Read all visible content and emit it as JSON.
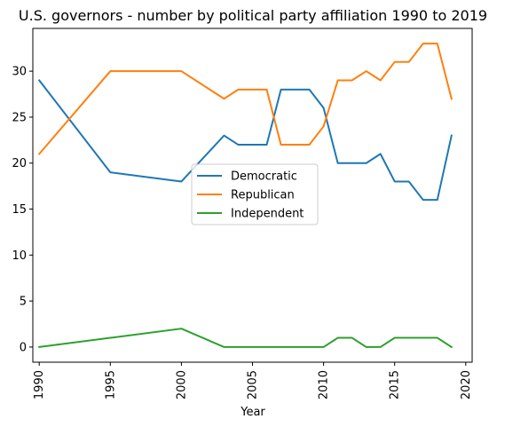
{
  "chart_data": {
    "type": "line",
    "title": "U.S. governors - number by political party affiliation 1990 to 2019",
    "xlabel": "Year",
    "ylabel": "",
    "xlim": [
      1989.55,
      2020.45
    ],
    "ylim": [
      -1.65,
      34.65
    ],
    "x_ticks": [
      "1990",
      "1995",
      "2000",
      "2005",
      "2010",
      "2015",
      "2020"
    ],
    "y_ticks": [
      "0",
      "5",
      "10",
      "15",
      "20",
      "25",
      "30"
    ],
    "legend_position": "center",
    "series": [
      {
        "name": "Democratic",
        "color": "#1f77b4",
        "points": [
          [
            1990,
            29
          ],
          [
            1995,
            19
          ],
          [
            2000,
            18
          ],
          [
            2003,
            23
          ],
          [
            2004,
            22
          ],
          [
            2005,
            22
          ],
          [
            2006,
            22
          ],
          [
            2007,
            28
          ],
          [
            2008,
            28
          ],
          [
            2009,
            28
          ],
          [
            2010,
            26
          ],
          [
            2011,
            20
          ],
          [
            2012,
            20
          ],
          [
            2013,
            20
          ],
          [
            2014,
            21
          ],
          [
            2015,
            18
          ],
          [
            2016,
            18
          ],
          [
            2017,
            16
          ],
          [
            2018,
            16
          ],
          [
            2019,
            23
          ]
        ]
      },
      {
        "name": "Republican",
        "color": "#ff7f0e",
        "points": [
          [
            1990,
            21
          ],
          [
            1995,
            30
          ],
          [
            2000,
            30
          ],
          [
            2003,
            27
          ],
          [
            2004,
            28
          ],
          [
            2005,
            28
          ],
          [
            2006,
            28
          ],
          [
            2007,
            22
          ],
          [
            2008,
            22
          ],
          [
            2009,
            22
          ],
          [
            2010,
            24
          ],
          [
            2011,
            29
          ],
          [
            2012,
            29
          ],
          [
            2013,
            30
          ],
          [
            2014,
            29
          ],
          [
            2015,
            31
          ],
          [
            2016,
            31
          ],
          [
            2017,
            33
          ],
          [
            2018,
            33
          ],
          [
            2019,
            27
          ]
        ]
      },
      {
        "name": "Independent",
        "color": "#2ca02c",
        "points": [
          [
            1990,
            0
          ],
          [
            1995,
            1
          ],
          [
            2000,
            2
          ],
          [
            2003,
            0
          ],
          [
            2004,
            0
          ],
          [
            2005,
            0
          ],
          [
            2006,
            0
          ],
          [
            2007,
            0
          ],
          [
            2008,
            0
          ],
          [
            2009,
            0
          ],
          [
            2010,
            0
          ],
          [
            2011,
            1
          ],
          [
            2012,
            1
          ],
          [
            2013,
            0
          ],
          [
            2014,
            0
          ],
          [
            2015,
            1
          ],
          [
            2016,
            1
          ],
          [
            2017,
            1
          ],
          [
            2018,
            1
          ],
          [
            2019,
            0
          ]
        ]
      }
    ]
  }
}
